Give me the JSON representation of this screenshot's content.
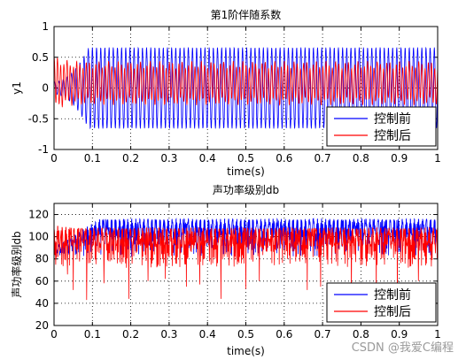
{
  "watermark": "CSDN @我爱C编程",
  "colors": {
    "before": "#0000ff",
    "after": "#ff0000",
    "grid": "#000000"
  },
  "chart_data": [
    {
      "type": "line",
      "title": "第1阶伴随系数",
      "xlabel": "time(s)",
      "ylabel": "y1",
      "xlim": [
        0,
        1
      ],
      "ylim": [
        -1,
        1
      ],
      "xticks": [
        "0",
        "0.1",
        "0.2",
        "0.3",
        "0.4",
        "0.5",
        "0.6",
        "0.7",
        "0.8",
        "0.9",
        "1"
      ],
      "yticks": [
        "1",
        "0.5",
        "0",
        "-0.5",
        "-1"
      ],
      "grid": true,
      "legend_position": "lower-right",
      "series": [
        {
          "name": "控制前",
          "color": "#0000ff",
          "oscillation_frequency_hz": 92,
          "amplitude_start": 0.1,
          "amplitude_steady": 0.66,
          "settling_time_s": 0.09
        },
        {
          "name": "控制后",
          "color": "#ff0000",
          "oscillation_frequency_hz": 120,
          "initial_peak": 0.4,
          "amplitude_steady": 0.3,
          "steady_offset": 0.08
        }
      ]
    },
    {
      "type": "line",
      "title": "声功率级别db",
      "xlabel": "time(s)",
      "ylabel": "声功率级别db",
      "xlim": [
        0,
        1
      ],
      "ylim": [
        20,
        130
      ],
      "xticks": [
        "0",
        "0.1",
        "0.2",
        "0.3",
        "0.4",
        "0.5",
        "0.6",
        "0.7",
        "0.8",
        "0.9",
        "1"
      ],
      "yticks": [
        "120",
        "100",
        "80",
        "60",
        "40",
        "20"
      ],
      "grid": true,
      "legend_position": "lower-right",
      "series": [
        {
          "name": "控制前",
          "color": "#0000ff",
          "steady_max": 116,
          "steady_min": 82,
          "start_value": 90,
          "rise_time_s": 0.12
        },
        {
          "name": "控制后",
          "color": "#ff0000",
          "steady_max": 108,
          "steady_min": 72,
          "start_value": 110,
          "deep_dips": [
            {
              "x": 0.02,
              "y": 75
            },
            {
              "x": 0.035,
              "y": 66
            },
            {
              "x": 0.05,
              "y": 52
            },
            {
              "x": 0.085,
              "y": 43
            },
            {
              "x": 0.13,
              "y": 58
            },
            {
              "x": 0.195,
              "y": 44
            },
            {
              "x": 0.245,
              "y": 60
            },
            {
              "x": 0.29,
              "y": 62
            },
            {
              "x": 0.345,
              "y": 55
            },
            {
              "x": 0.38,
              "y": 57
            },
            {
              "x": 0.435,
              "y": 44
            },
            {
              "x": 0.5,
              "y": 53
            },
            {
              "x": 0.535,
              "y": 60
            },
            {
              "x": 0.66,
              "y": 52
            },
            {
              "x": 0.695,
              "y": 55
            },
            {
              "x": 0.775,
              "y": 50
            },
            {
              "x": 0.84,
              "y": 48
            },
            {
              "x": 0.895,
              "y": 42
            },
            {
              "x": 0.95,
              "y": 60
            }
          ]
        }
      ]
    }
  ]
}
